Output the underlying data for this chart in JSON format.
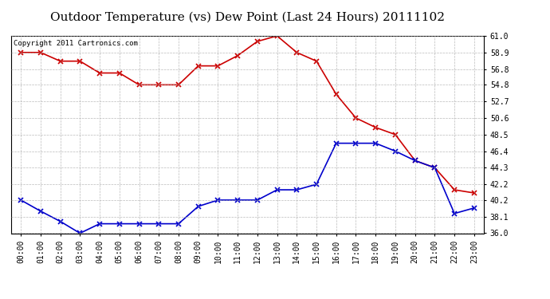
{
  "title": "Outdoor Temperature (vs) Dew Point (Last 24 Hours) 20111102",
  "copyright": "Copyright 2011 Cartronics.com",
  "x_labels": [
    "00:00",
    "01:00",
    "02:00",
    "03:00",
    "04:00",
    "05:00",
    "06:00",
    "07:00",
    "08:00",
    "09:00",
    "10:00",
    "11:00",
    "12:00",
    "13:00",
    "14:00",
    "15:00",
    "16:00",
    "17:00",
    "18:00",
    "19:00",
    "20:00",
    "21:00",
    "22:00",
    "23:00"
  ],
  "temp_data": [
    58.9,
    58.9,
    57.8,
    57.8,
    56.3,
    56.3,
    54.8,
    54.8,
    54.8,
    57.2,
    57.2,
    58.5,
    60.3,
    61.0,
    58.9,
    57.8,
    53.6,
    50.6,
    49.4,
    48.5,
    45.2,
    44.3,
    41.5,
    41.1
  ],
  "dew_data": [
    40.2,
    38.8,
    37.5,
    36.0,
    37.2,
    37.2,
    37.2,
    37.2,
    37.2,
    39.4,
    40.2,
    40.2,
    40.2,
    41.5,
    41.5,
    42.2,
    47.4,
    47.4,
    47.4,
    46.4,
    45.2,
    44.3,
    38.5,
    39.2
  ],
  "temp_color": "#cc0000",
  "dew_color": "#0000cc",
  "bg_color": "#ffffff",
  "grid_color": "#aaaaaa",
  "ylim_min": 36.0,
  "ylim_max": 61.0,
  "yticks": [
    36.0,
    38.1,
    40.2,
    42.2,
    44.3,
    46.4,
    48.5,
    50.6,
    52.7,
    54.8,
    56.8,
    58.9,
    61.0
  ],
  "title_fontsize": 11,
  "copyright_fontsize": 6.5,
  "tick_fontsize": 7,
  "linewidth": 1.2,
  "markersize": 4
}
